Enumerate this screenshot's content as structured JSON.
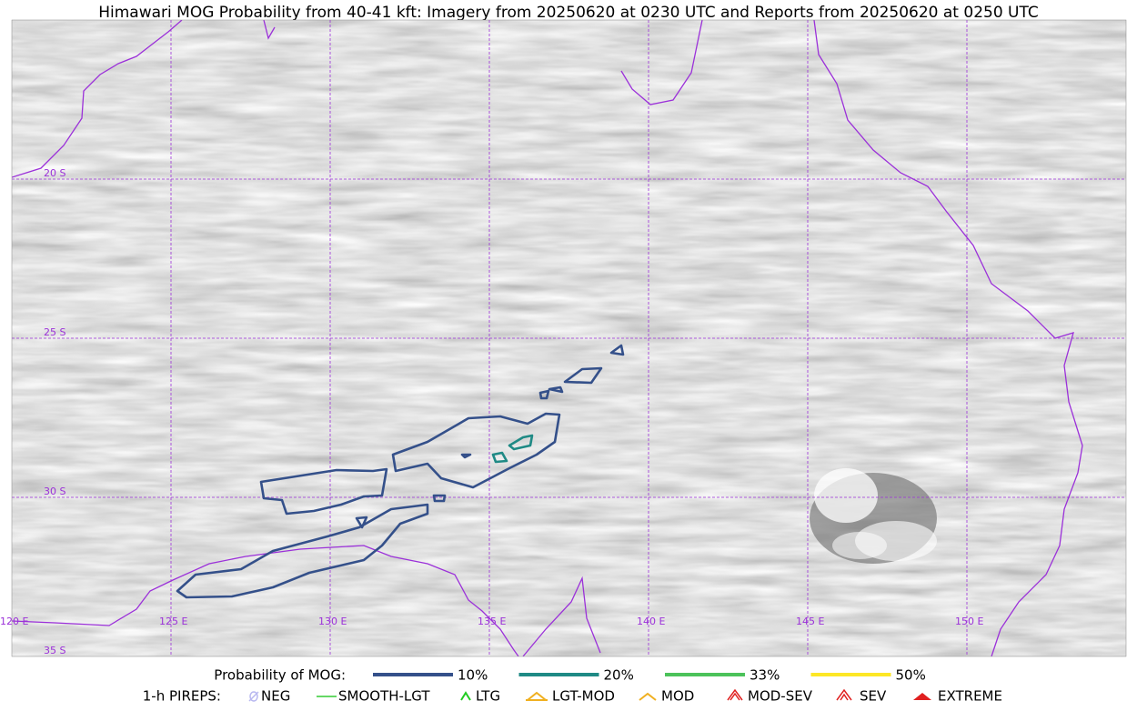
{
  "header": {
    "title": "Himawari MOG Probability from 40-41 kft: Imagery from 20250620 at 0230 UTC and Reports from 20250620 at 0250 UTC"
  },
  "map": {
    "lat_labels": [
      "20 S",
      "25 S",
      "30 S",
      "35 S"
    ],
    "lon_labels": [
      "120 E",
      "125 E",
      "130 E",
      "135 E",
      "140 E",
      "145 E",
      "150 E"
    ]
  },
  "legend": {
    "probability": {
      "label": "Probability of MOG:",
      "items": [
        {
          "label": "10%",
          "color": "#34508a"
        },
        {
          "label": "20%",
          "color": "#1f8a85"
        },
        {
          "label": "33%",
          "color": "#4cc25a"
        },
        {
          "label": "50%",
          "color": "#fde725"
        }
      ]
    },
    "pireps": {
      "label": "1-h PIREPS:",
      "items": [
        {
          "label": "NEG"
        },
        {
          "label": "SMOOTH-LGT"
        },
        {
          "label": "LTG"
        },
        {
          "label": "LGT-MOD"
        },
        {
          "label": "MOD"
        },
        {
          "label": "MOD-SEV"
        },
        {
          "label": "SEV"
        },
        {
          "label": "EXTREME"
        }
      ]
    }
  }
}
